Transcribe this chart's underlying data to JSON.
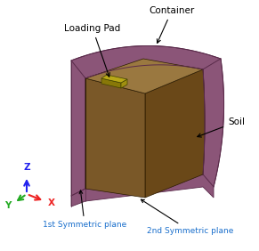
{
  "bg_color": "#ffffff",
  "container_color": "#8B5578",
  "container_edge_color": "#5A2A4A",
  "soil_left_color": "#7A5828",
  "soil_top_color": "#9A7840",
  "soil_right_color": "#6A4818",
  "loading_pad_top_color": "#B8A818",
  "loading_pad_front_color": "#887808",
  "loading_pad_side_color": "#A09010",
  "label_color": "#000000",
  "sym_label_color": "#1A6FCC",
  "axis_z_color": "#2222EE",
  "axis_y_color": "#22AA22",
  "axis_x_color": "#EE2222",
  "labels": {
    "loading_pad": "Loading Pad",
    "container": "Container",
    "soil": "Soil",
    "sym1": "1st Symmetric plane",
    "sym2": "2nd Symmetric plane",
    "Z": "Z",
    "Y": "Y",
    "X": "X"
  },
  "figsize": [
    2.91,
    2.82
  ],
  "dpi": 100
}
